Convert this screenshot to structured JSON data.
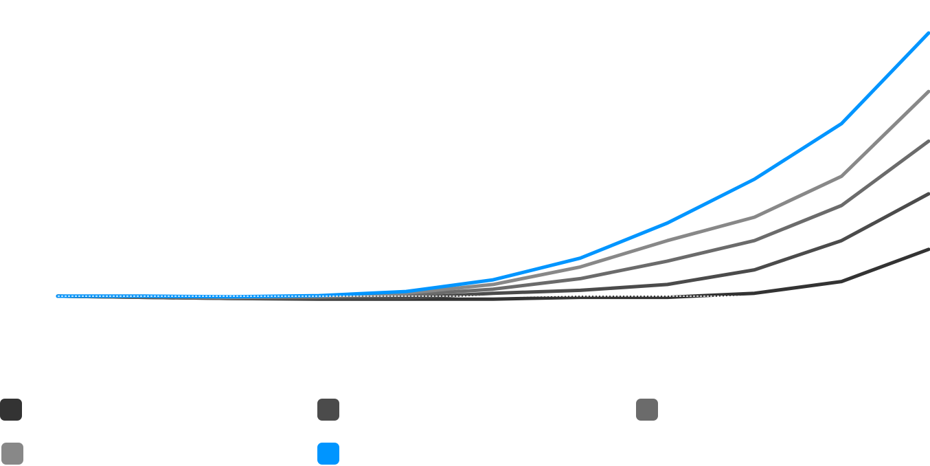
{
  "chart_data": {
    "type": "line",
    "title": "",
    "xlabel": "",
    "ylabel": "",
    "x_range": [
      0,
      100
    ],
    "ylim": [
      -1.0,
      4.5
    ],
    "grid": false,
    "legend_position": "bottom",
    "x": [
      0,
      10,
      20,
      30,
      40,
      50,
      60,
      70,
      80,
      90,
      100
    ],
    "baseline": {
      "value": 0,
      "style": "dashed"
    },
    "series": [
      {
        "name": "",
        "color": "#333333",
        "values": [
          0,
          -0.02,
          -0.04,
          -0.05,
          -0.05,
          -0.05,
          -0.02,
          -0.02,
          0.05,
          0.25,
          0.8
        ]
      },
      {
        "name": "",
        "color": "#4b4b4b",
        "values": [
          0,
          -0.02,
          -0.04,
          -0.04,
          -0.03,
          0.05,
          0.1,
          0.2,
          0.45,
          0.95,
          1.75
        ]
      },
      {
        "name": "",
        "color": "#6b6b6b",
        "values": [
          0,
          -0.01,
          -0.03,
          -0.02,
          0.02,
          0.12,
          0.3,
          0.6,
          0.95,
          1.55,
          2.65
        ]
      },
      {
        "name": "",
        "color": "#888888",
        "values": [
          0,
          0,
          -0.02,
          0,
          0.05,
          0.2,
          0.5,
          0.95,
          1.35,
          2.05,
          3.5
        ]
      },
      {
        "name": "",
        "color": "#0095ff",
        "values": [
          0,
          0,
          -0.01,
          0.01,
          0.08,
          0.28,
          0.65,
          1.25,
          2.0,
          2.95,
          4.5
        ]
      }
    ]
  }
}
